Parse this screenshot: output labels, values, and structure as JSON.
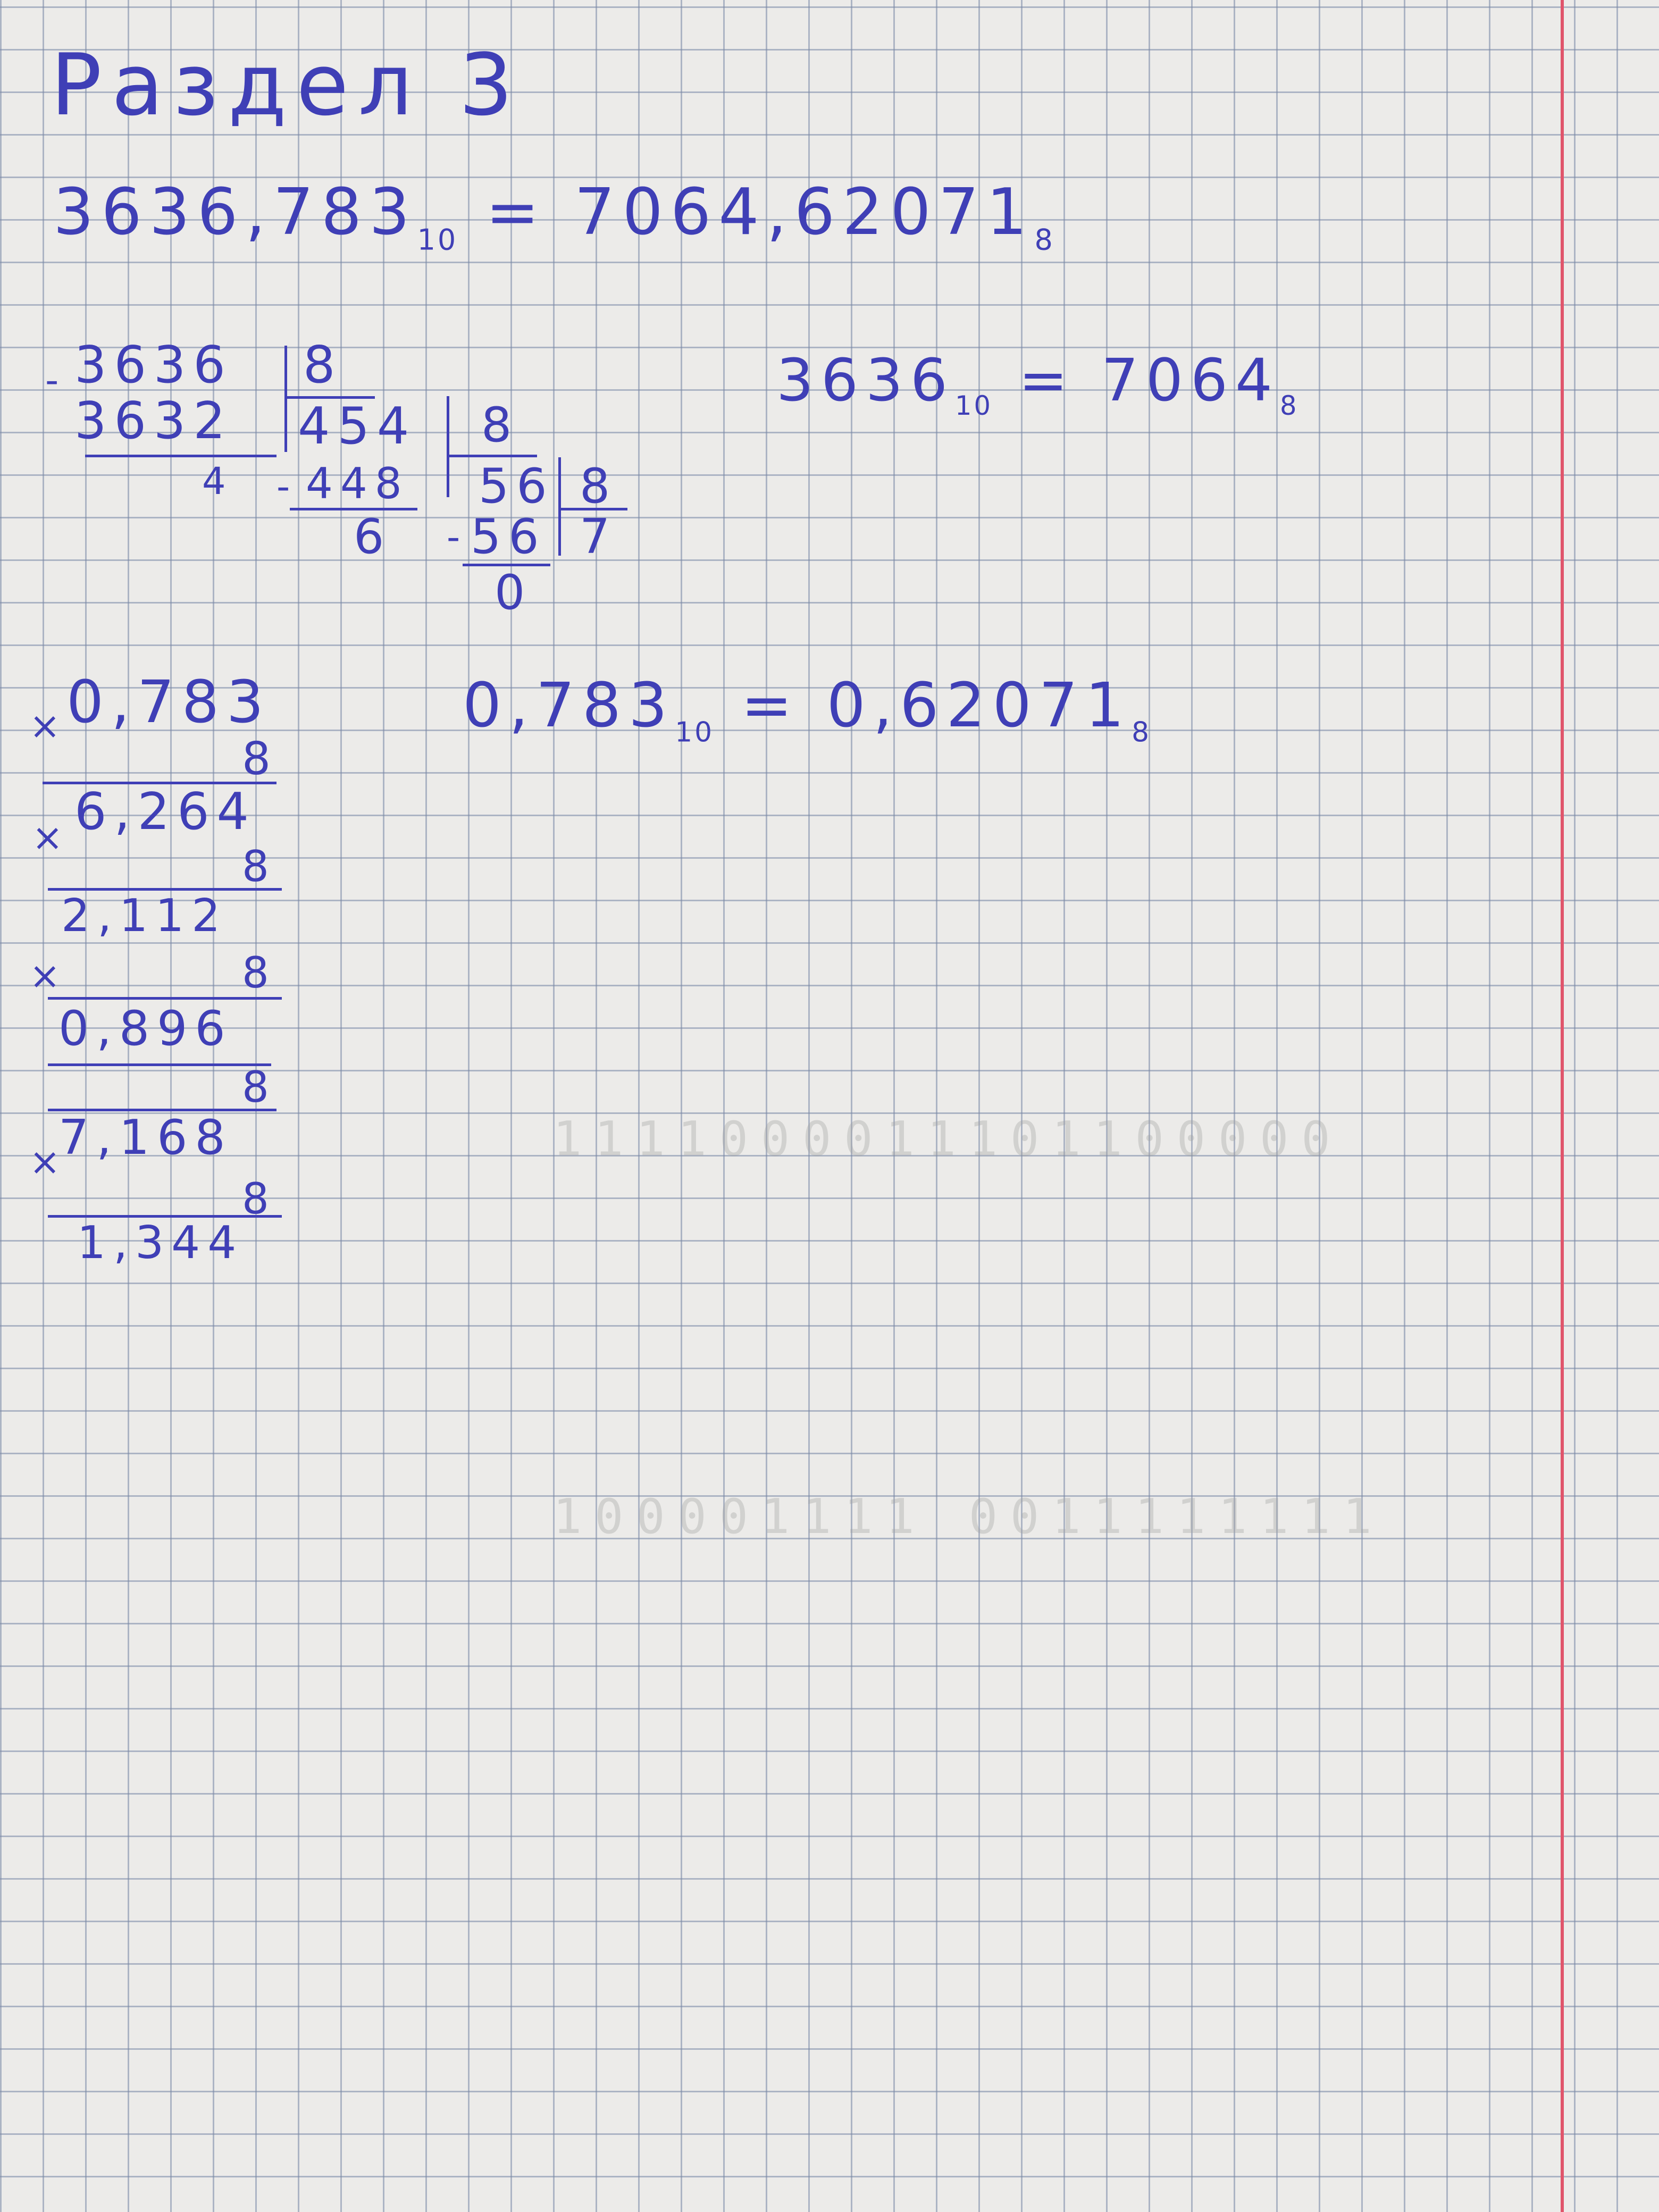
{
  "title": "Раздел 3",
  "result": {
    "lhs": "3636,783",
    "lhs_base": "10",
    "rhs": "7064,62071",
    "rhs_base": "8"
  },
  "int_result": {
    "lhs": "3636",
    "lhs_base": "10",
    "rhs": "7064",
    "rhs_base": "8"
  },
  "division": {
    "dividend": "3636",
    "divisor": "8",
    "sub1": "3632",
    "rem1": "4",
    "q1": "454",
    "divisor2": "8",
    "sub2": "448",
    "rem2": "6",
    "q2": "56",
    "divisor3": "8",
    "sub3": "56",
    "q3": "7",
    "rem3": "0"
  },
  "frac_result": {
    "lhs": "0,783",
    "lhs_base": "10",
    "rhs": "0,62071",
    "rhs_base": "8"
  },
  "multiplication": {
    "x_sign": "×",
    "multiplier": "8",
    "rows": [
      "0,783",
      "6,264",
      "2,112",
      "0,896",
      "7,168",
      "1,344"
    ]
  },
  "colors": {
    "ink": "#3f3fb6",
    "grid": "#7887a5",
    "margin": "#e0556b",
    "paper": "#ecebe9"
  }
}
